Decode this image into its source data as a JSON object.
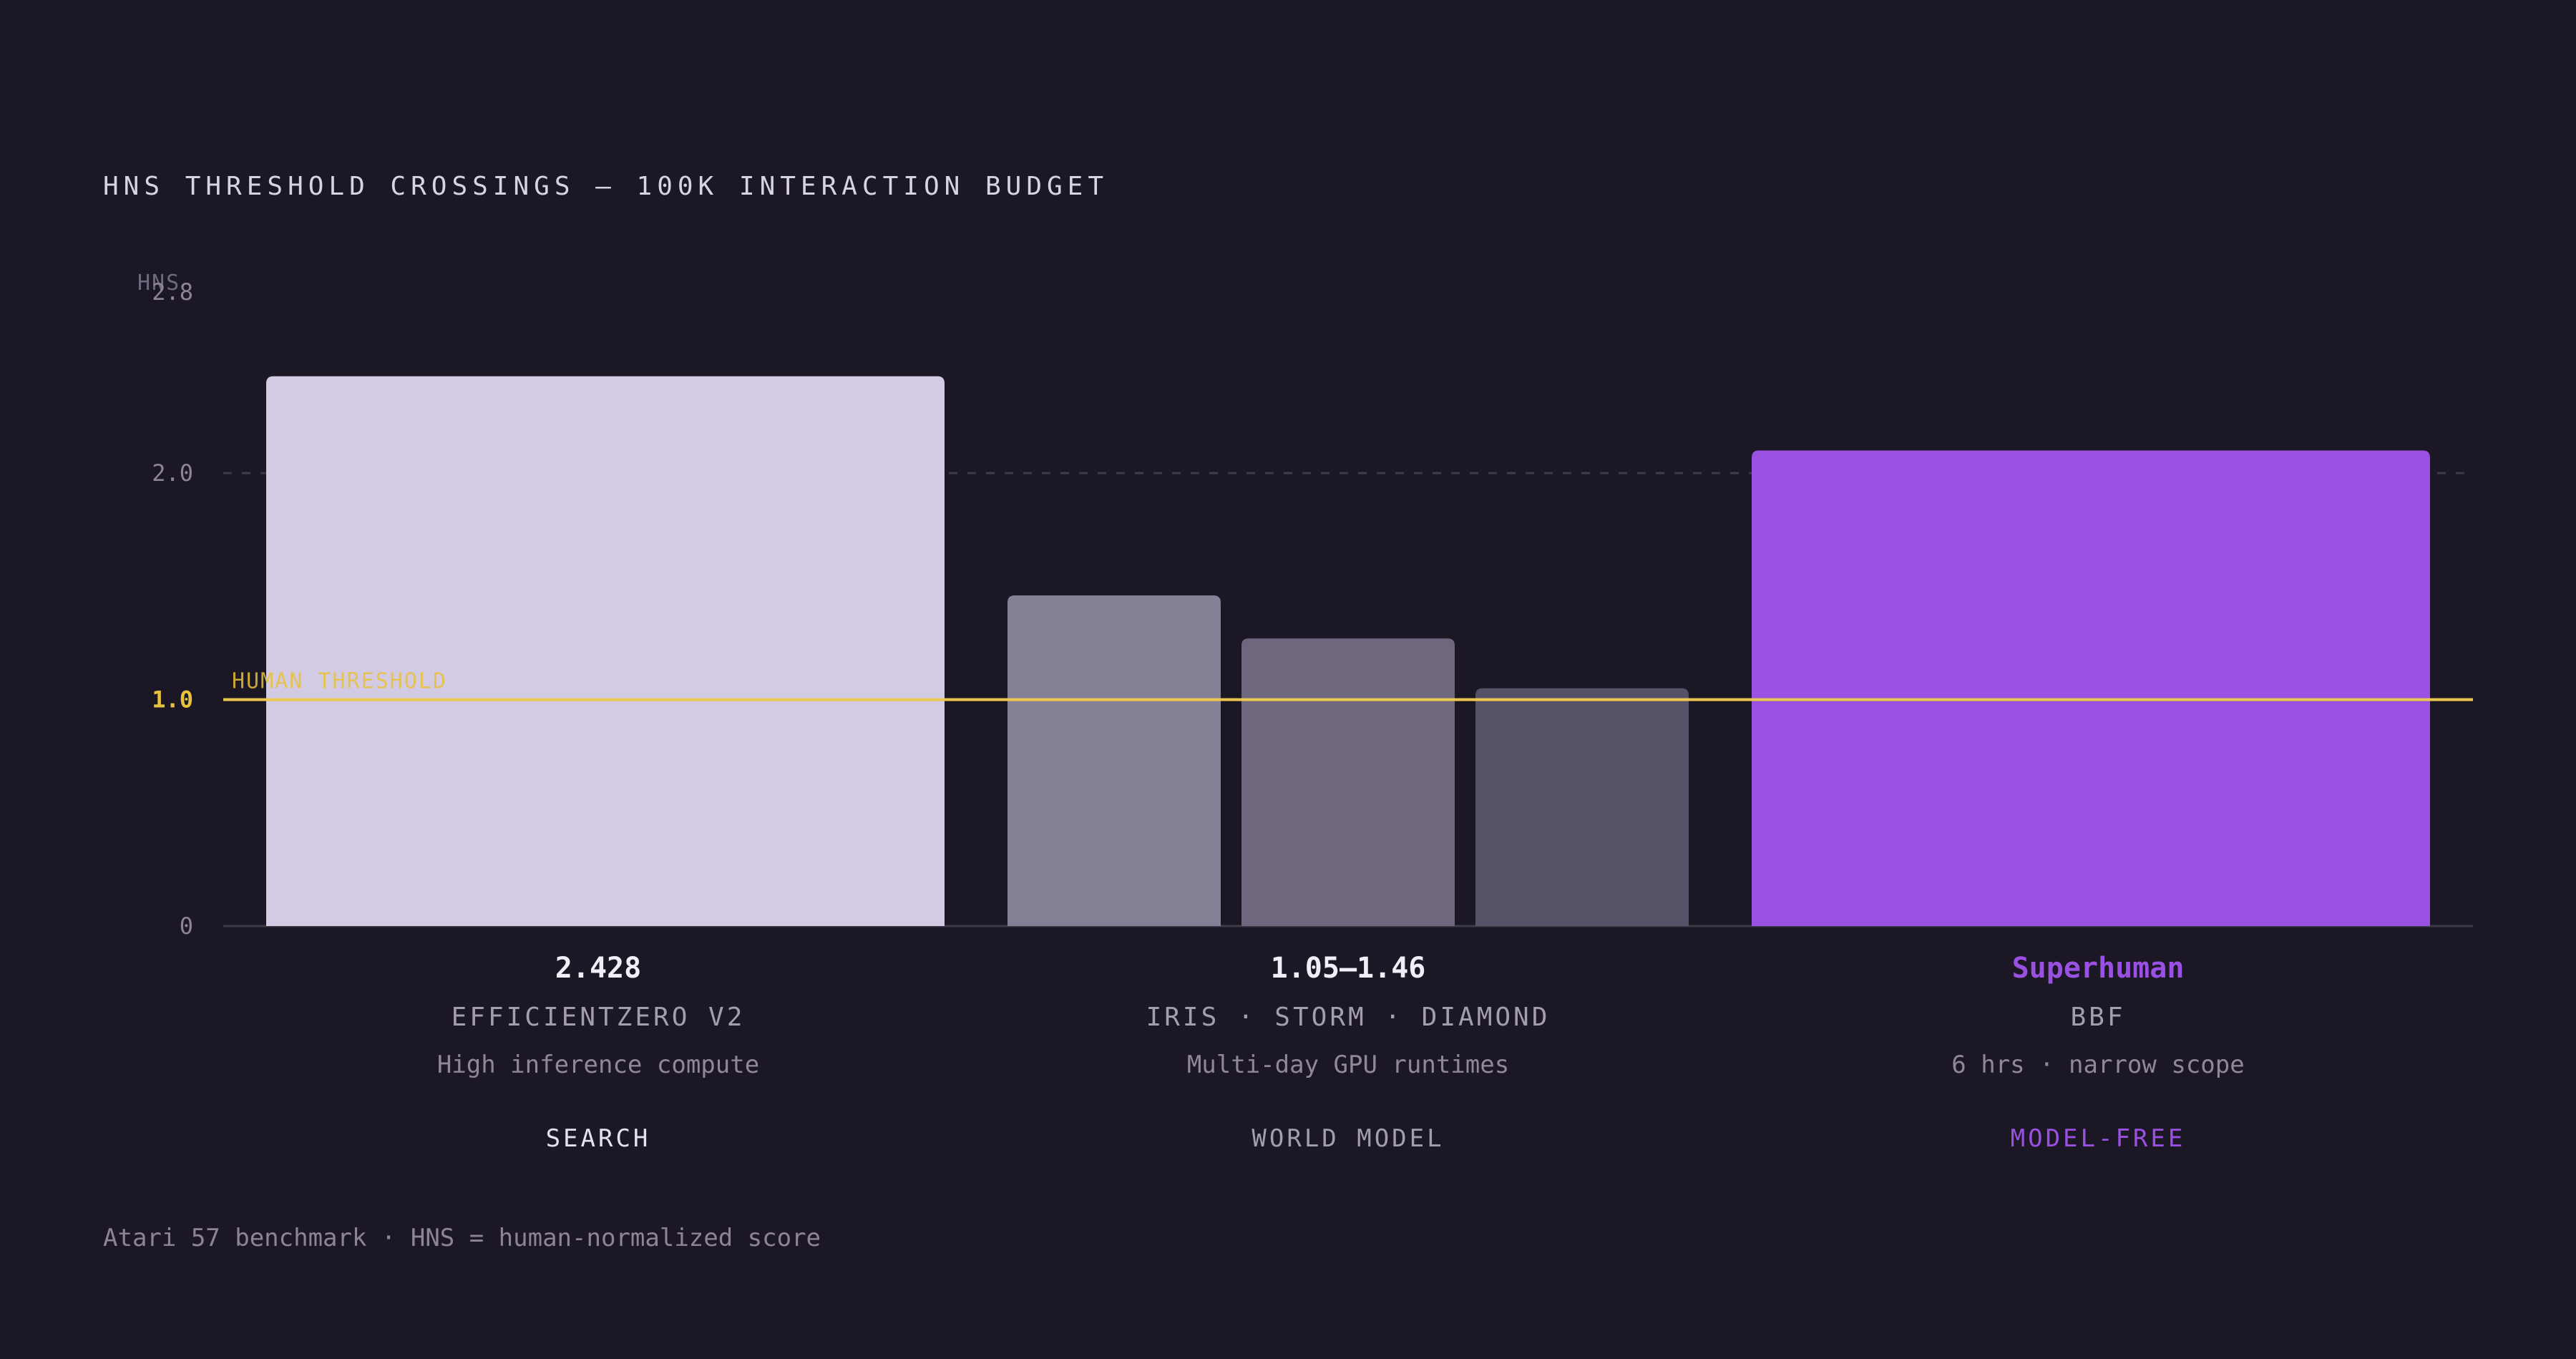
{
  "title": "HNS THRESHOLD CROSSINGS — 100K INTERACTION BUDGET",
  "footer": "Atari 57 benchmark · HNS = human-normalized score",
  "colors": {
    "background": "#1b1725",
    "search": "#d3cbe3",
    "world_model_1": "#868096",
    "world_model_2": "#6e677e",
    "world_model_3": "#575168",
    "model_free": "#9a50e0",
    "threshold": "#e8c23a",
    "grid": "#3f3a4c",
    "axis_text": "#8c8599"
  },
  "chart_data": {
    "type": "bar",
    "ylabel": "HNS",
    "ylim": [
      0,
      2.8
    ],
    "yticks": [
      {
        "value": 0,
        "label": "0"
      },
      {
        "value": 1.0,
        "label": "1.0"
      },
      {
        "value": 2.0,
        "label": "2.0"
      },
      {
        "value": 2.8,
        "label": "2.8"
      }
    ],
    "threshold": {
      "value": 1.0,
      "label": "HUMAN THRESHOLD"
    },
    "reference_line": {
      "value": 2.0,
      "style": "dashed"
    },
    "groups": [
      {
        "key": "search",
        "value_label": "2.428",
        "name": "EFFICIENTZERO V2",
        "note": "High inference compute",
        "category": "SEARCH",
        "bars": [
          {
            "value": 2.428,
            "color": "#d3cbe3"
          }
        ]
      },
      {
        "key": "world-model",
        "value_label": "1.05–1.46",
        "name": "IRIS · STORM · DIAMOND",
        "note": "Multi-day GPU runtimes",
        "category": "WORLD MODEL",
        "bars": [
          {
            "value": 1.46,
            "color": "#868096"
          },
          {
            "value": 1.27,
            "color": "#6e677e"
          },
          {
            "value": 1.05,
            "color": "#575168"
          }
        ]
      },
      {
        "key": "model-free",
        "value_label": "Superhuman",
        "name": "BBF",
        "note": "6 hrs · narrow scope",
        "category": "MODEL-FREE",
        "bars": [
          {
            "value": 2.1,
            "color": "#9a50e0"
          }
        ]
      }
    ]
  }
}
